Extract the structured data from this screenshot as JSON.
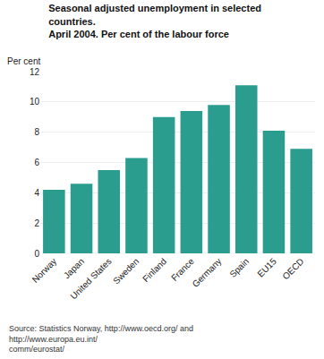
{
  "chart_data": {
    "type": "bar",
    "title": "Seasonal adjusted unemployment in selected countries.\nApril 2004. Per cent of the labour force",
    "ylabel": "Per cent",
    "source": "Source: Statistics Norway, http://www.oecd.org/ and http://www.europa.eu.int/\ncomm/eurostat/",
    "categories": [
      "Norway",
      "Japan",
      "United States",
      "Sweden",
      "Finland",
      "France",
      "Germany",
      "Spain",
      "EU15",
      "OECD"
    ],
    "values": [
      4.2,
      4.6,
      5.5,
      6.3,
      9.0,
      9.4,
      9.8,
      11.1,
      8.1,
      6.9
    ],
    "color": "#2a9d8f",
    "ylim": [
      0,
      12
    ],
    "yticks": [
      0,
      2,
      4,
      6,
      8,
      10,
      12
    ],
    "grid": true
  }
}
